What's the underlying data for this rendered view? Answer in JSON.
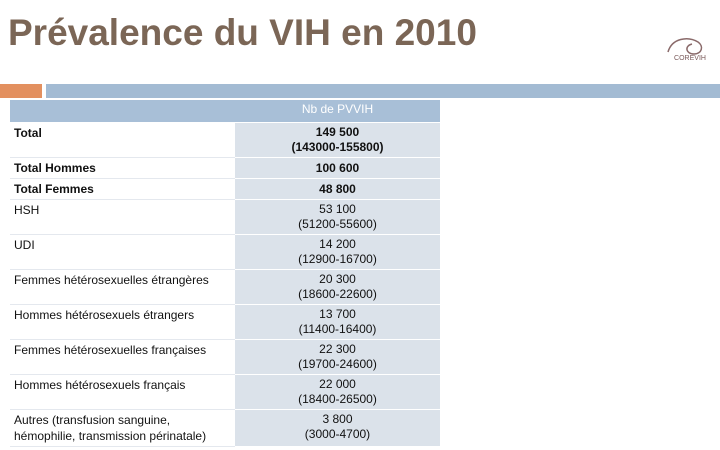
{
  "header": {
    "title": "Prévalence du VIH en 2010",
    "logo": "COREVIH"
  },
  "table": {
    "columns": [
      "",
      "Nb de PVVIH"
    ],
    "rows": [
      {
        "label": "Total",
        "value": "149 500",
        "range": "(143000-155800)",
        "bold": true
      },
      {
        "label": "Total Hommes",
        "value": "100 600",
        "bold": true
      },
      {
        "label": "Total Femmes",
        "value": "48 800",
        "bold": true
      },
      {
        "label": "HSH",
        "value": "53 100",
        "range": "(51200-55600)"
      },
      {
        "label": "UDI",
        "value": "14 200",
        "range": "(12900-16700)"
      },
      {
        "label": "Femmes hétérosexuelles étrangères",
        "value": "20 300",
        "range": "(18600-22600)"
      },
      {
        "label": "Hommes hétérosexuels étrangers",
        "value": "13 700",
        "range": "(11400-16400)"
      },
      {
        "label": "Femmes hétérosexuelles françaises",
        "value": "22 300",
        "range": "(19700-24600)"
      },
      {
        "label": "Hommes hétérosexuels français",
        "value": "22 000",
        "range": "(18400-26500)"
      },
      {
        "label": "Autres (transfusion sanguine, hémophilie, transmission périnatale)",
        "value": "3 800",
        "range": "(3000-4700)"
      }
    ]
  }
}
